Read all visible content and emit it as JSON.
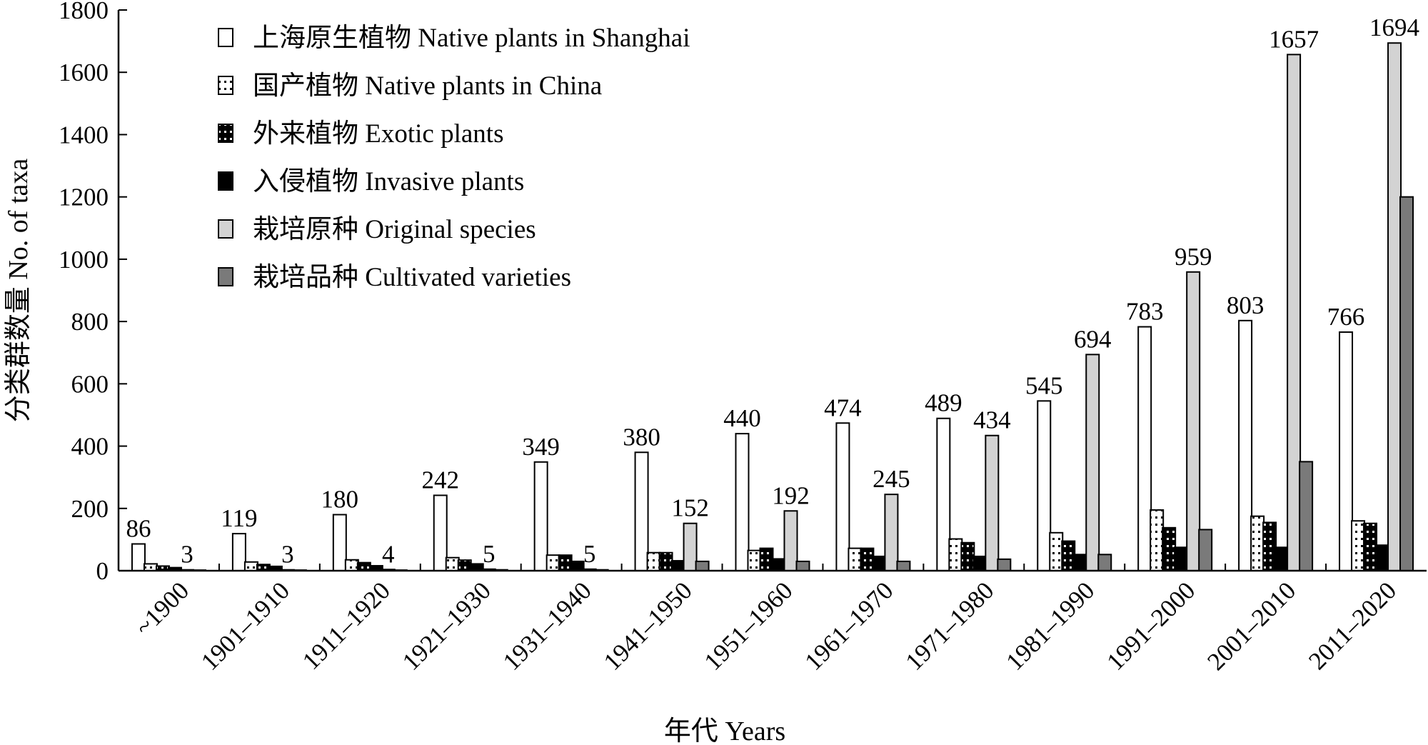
{
  "chart_data": {
    "type": "bar",
    "xlabel": "年代 Years",
    "ylabel": "分类群数量 No. of taxa",
    "ylim": [
      0,
      1800
    ],
    "yticks": [
      0,
      200,
      400,
      600,
      800,
      1000,
      1200,
      1400,
      1600,
      1800
    ],
    "legend_position": "top-left",
    "categories": [
      "~1900",
      "1901–1910",
      "1911–1920",
      "1921–1930",
      "1931–1940",
      "1941–1950",
      "1951–1960",
      "1961–1970",
      "1971–1980",
      "1981–1990",
      "1991–2000",
      "2001–2010",
      "2011–2020"
    ],
    "series": [
      {
        "name": "上海原生植物 Native plants in Shanghai",
        "key": "native_shanghai",
        "fill": "#ffffff",
        "pattern": "none",
        "values": [
          86,
          119,
          180,
          242,
          349,
          380,
          440,
          474,
          489,
          545,
          783,
          803,
          766
        ]
      },
      {
        "name": "国产植物 Native plants in China",
        "key": "native_china",
        "fill": "#ffffff",
        "pattern": "dots-black",
        "values": [
          22,
          28,
          35,
          42,
          50,
          58,
          65,
          72,
          102,
          122,
          195,
          175,
          160
        ]
      },
      {
        "name": "外来植物 Exotic plants",
        "key": "exotic",
        "fill": "#000000",
        "pattern": "dots-white",
        "values": [
          15,
          20,
          26,
          34,
          50,
          58,
          72,
          72,
          90,
          95,
          138,
          155,
          152
        ]
      },
      {
        "name": "入侵植物 Invasive plants",
        "key": "invasive",
        "fill": "#000000",
        "pattern": "none",
        "values": [
          10,
          14,
          16,
          22,
          30,
          32,
          38,
          46,
          46,
          52,
          75,
          75,
          82
        ]
      },
      {
        "name": "栽培原种 Original species",
        "key": "original",
        "fill": "#d3d3d3",
        "pattern": "none",
        "values": [
          3,
          3,
          4,
          5,
          5,
          152,
          192,
          245,
          434,
          694,
          959,
          1657,
          1694
        ]
      },
      {
        "name": "栽培品种 Cultivated varieties",
        "key": "cultivated",
        "fill": "#7a7a7a",
        "pattern": "none",
        "values": [
          2,
          2,
          2,
          3,
          3,
          30,
          30,
          30,
          37,
          52,
          132,
          350,
          1200
        ]
      }
    ],
    "labeled_series": [
      "native_shanghai",
      "original"
    ]
  }
}
